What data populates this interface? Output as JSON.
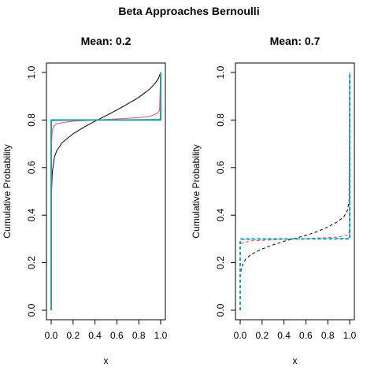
{
  "figure": {
    "title": "Beta Approaches Bernoulli"
  },
  "colors": {
    "alpha_small": "#000000",
    "alpha_medium": "#df536b",
    "alpha_large": "#2297e6",
    "alpha_largest": "#28a0a0"
  },
  "chart_data": [
    {
      "type": "line",
      "title": "Mean: 0.2",
      "xlabel": "x",
      "ylabel": "Cumulative Probability",
      "xlim": [
        0,
        1
      ],
      "ylim": [
        0,
        1
      ],
      "xticks": [
        "0.0",
        "0.2",
        "0.4",
        "0.6",
        "0.8",
        "1.0"
      ],
      "yticks": [
        "0.0",
        "0.2",
        "0.4",
        "0.6",
        "0.8",
        "1.0"
      ],
      "line_style": "solid",
      "series": [
        {
          "color": "#000000",
          "x": [
            0,
            0.001,
            0.01,
            0.03,
            0.05,
            0.1,
            0.2,
            0.3,
            0.4,
            0.5,
            0.6,
            0.7,
            0.8,
            0.9,
            0.95,
            0.98,
            1.0
          ],
          "y": [
            0,
            0.47,
            0.58,
            0.645,
            0.67,
            0.705,
            0.742,
            0.77,
            0.795,
            0.818,
            0.842,
            0.868,
            0.895,
            0.93,
            0.955,
            0.975,
            1.0
          ]
        },
        {
          "color": "#df536b",
          "x": [
            0,
            0.003,
            0.01,
            0.02,
            0.05,
            0.2,
            0.5,
            0.8,
            0.9,
            0.97,
            0.99,
            1.0
          ],
          "y": [
            0,
            0.7,
            0.755,
            0.772,
            0.785,
            0.795,
            0.802,
            0.81,
            0.815,
            0.828,
            0.84,
            1.0
          ]
        },
        {
          "color": "#2297e6",
          "x": [
            0,
            0.0005,
            0.01,
            0.5,
            0.99,
            0.9995,
            1.0
          ],
          "y": [
            0,
            0.79,
            0.797,
            0.8,
            0.803,
            0.81,
            1.0
          ]
        },
        {
          "color": "#28a0a0",
          "x": [
            0,
            0.0001,
            0.5,
            0.9999,
            1.0
          ],
          "y": [
            0,
            0.8,
            0.8,
            0.8,
            1.0
          ]
        }
      ]
    },
    {
      "type": "line",
      "title": "Mean: 0.7",
      "xlabel": "x",
      "ylabel": "Cumulative Probability",
      "xlim": [
        0,
        1
      ],
      "ylim": [
        0,
        1
      ],
      "xticks": [
        "0.0",
        "0.2",
        "0.4",
        "0.6",
        "0.8",
        "1.0"
      ],
      "yticks": [
        "0.0",
        "0.2",
        "0.4",
        "0.6",
        "0.8",
        "1.0"
      ],
      "line_style": "dashed",
      "series": [
        {
          "color": "#000000",
          "x": [
            0,
            0.001,
            0.01,
            0.05,
            0.1,
            0.2,
            0.3,
            0.4,
            0.5,
            0.6,
            0.7,
            0.8,
            0.9,
            0.95,
            0.98,
            0.995,
            1.0
          ],
          "y": [
            0,
            0.13,
            0.18,
            0.215,
            0.235,
            0.258,
            0.275,
            0.29,
            0.302,
            0.315,
            0.33,
            0.35,
            0.375,
            0.395,
            0.42,
            0.46,
            1.0
          ]
        },
        {
          "color": "#df536b",
          "x": [
            0,
            0.002,
            0.01,
            0.1,
            0.5,
            0.9,
            0.99,
            0.998,
            1.0
          ],
          "y": [
            0,
            0.26,
            0.282,
            0.292,
            0.3,
            0.308,
            0.318,
            0.34,
            1.0
          ]
        },
        {
          "color": "#2297e6",
          "x": [
            0,
            0.0005,
            0.01,
            0.5,
            0.99,
            0.9995,
            1.0
          ],
          "y": [
            0,
            0.292,
            0.297,
            0.3,
            0.303,
            0.308,
            1.0
          ]
        },
        {
          "color": "#28a0a0",
          "x": [
            0,
            0.0001,
            0.5,
            0.9999,
            1.0
          ],
          "y": [
            0,
            0.3,
            0.3,
            0.3,
            1.0
          ]
        }
      ]
    }
  ]
}
